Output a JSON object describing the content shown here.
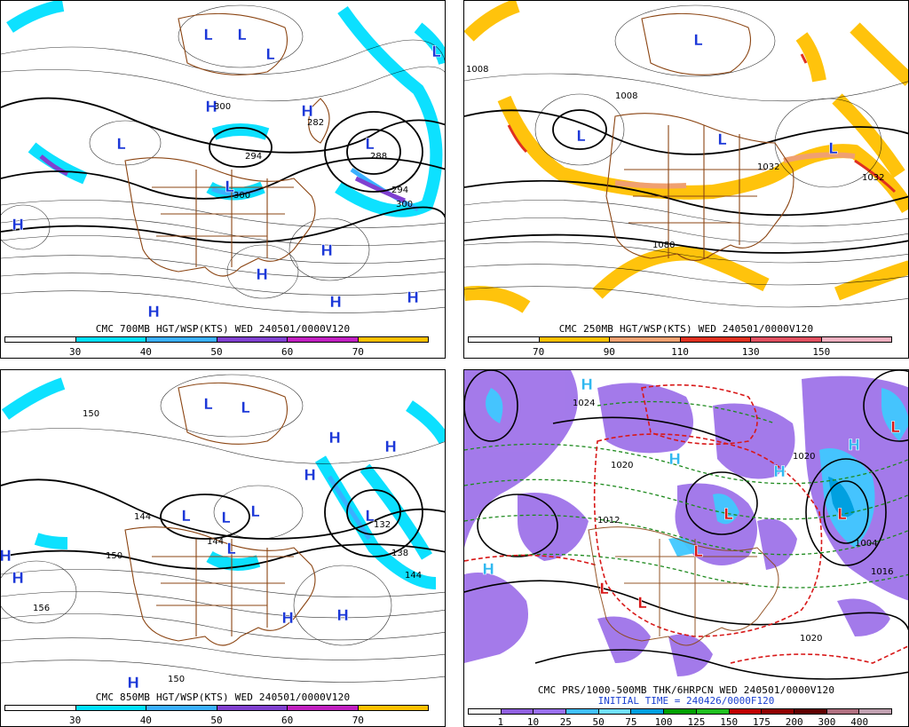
{
  "panels": {
    "p700": {
      "caption": "CMC 700MB HGT/WSP(KTS) WED 240501/0000V120",
      "ticks": [
        "30",
        "40",
        "50",
        "60",
        "70"
      ],
      "colors": [
        "#ffffff",
        "#00e0ff",
        "#3ab0ff",
        "#8040d0",
        "#c020c0",
        "#ffc000"
      ],
      "labels": {
        "h1": "H",
        "h2": "H",
        "h3": "H",
        "h4": "H",
        "h5": "H",
        "h6": "H",
        "h7": "H",
        "h8": "H",
        "l1": "L",
        "l2": "L",
        "l3": "L",
        "l4": "L",
        "l5": "L",
        "l6": "L",
        "l7": "L",
        "v1": "294",
        "v2": "288",
        "v3": "294",
        "v4": "300",
        "v5": "300",
        "v6": "282",
        "v7": "300"
      }
    },
    "p250": {
      "caption": "CMC 250MB HGT/WSP(KTS) WED 240501/0000V120",
      "ticks": [
        "70",
        "90",
        "110",
        "130",
        "150"
      ],
      "colors": [
        "#ffffff",
        "#ffc000",
        "#f0a070",
        "#e03020",
        "#e05060",
        "#f0b0c0"
      ],
      "labels": {
        "l1": "L",
        "l2": "L",
        "l3": "L",
        "l4": "L",
        "v1": "1008",
        "v2": "1008",
        "v3": "1032",
        "v4": "1080",
        "v5": "1032"
      }
    },
    "p850": {
      "caption": "CMC 850MB HGT/WSP(KTS) WED 240501/0000V120",
      "ticks": [
        "30",
        "40",
        "50",
        "60",
        "70"
      ],
      "colors": [
        "#ffffff",
        "#00e0ff",
        "#3ab0ff",
        "#8040d0",
        "#c020c0",
        "#ffc000"
      ],
      "labels": {
        "h1": "H",
        "h2": "H",
        "h3": "H",
        "h4": "H",
        "h5": "H",
        "h6": "H",
        "h7": "H",
        "h8": "H",
        "h9": "H",
        "l1": "L",
        "l2": "L",
        "l3": "L",
        "l4": "L",
        "l5": "L",
        "l6": "L",
        "l7": "L",
        "v1": "144",
        "v2": "150",
        "v3": "144",
        "v4": "156",
        "v5": "138",
        "v6": "132",
        "v7": "150",
        "v8": "144",
        "v9": "150"
      }
    },
    "pprs": {
      "caption": "CMC PRS/1000-500MB THK/6HRPCN WED 240501/0000V120",
      "subcaption": "INITIAL TIME = 240426/0000F120",
      "ticks": [
        "1",
        "10",
        "25",
        "50",
        "75",
        "100",
        "125",
        "150",
        "175",
        "200",
        "300",
        "400"
      ],
      "colors": [
        "#ffffff",
        "#9060e0",
        "#9a70f0",
        "#40c0ff",
        "#70e0ff",
        "#00a0e0",
        "#00a000",
        "#20c020",
        "#c00000",
        "#900000",
        "#600000",
        "#b07080",
        "#c0a0b0"
      ],
      "labels": {
        "h1": "H",
        "h2": "H",
        "h3": "H",
        "h4": "H",
        "h5": "H",
        "l1": "L",
        "l2": "L",
        "l3": "L",
        "l4": "L",
        "l5": "L",
        "l6": "L",
        "v1": "1020",
        "v2": "1020",
        "v3": "1004",
        "v4": "1016",
        "v5": "1020",
        "v6": "1024",
        "v7": "1012"
      }
    }
  }
}
